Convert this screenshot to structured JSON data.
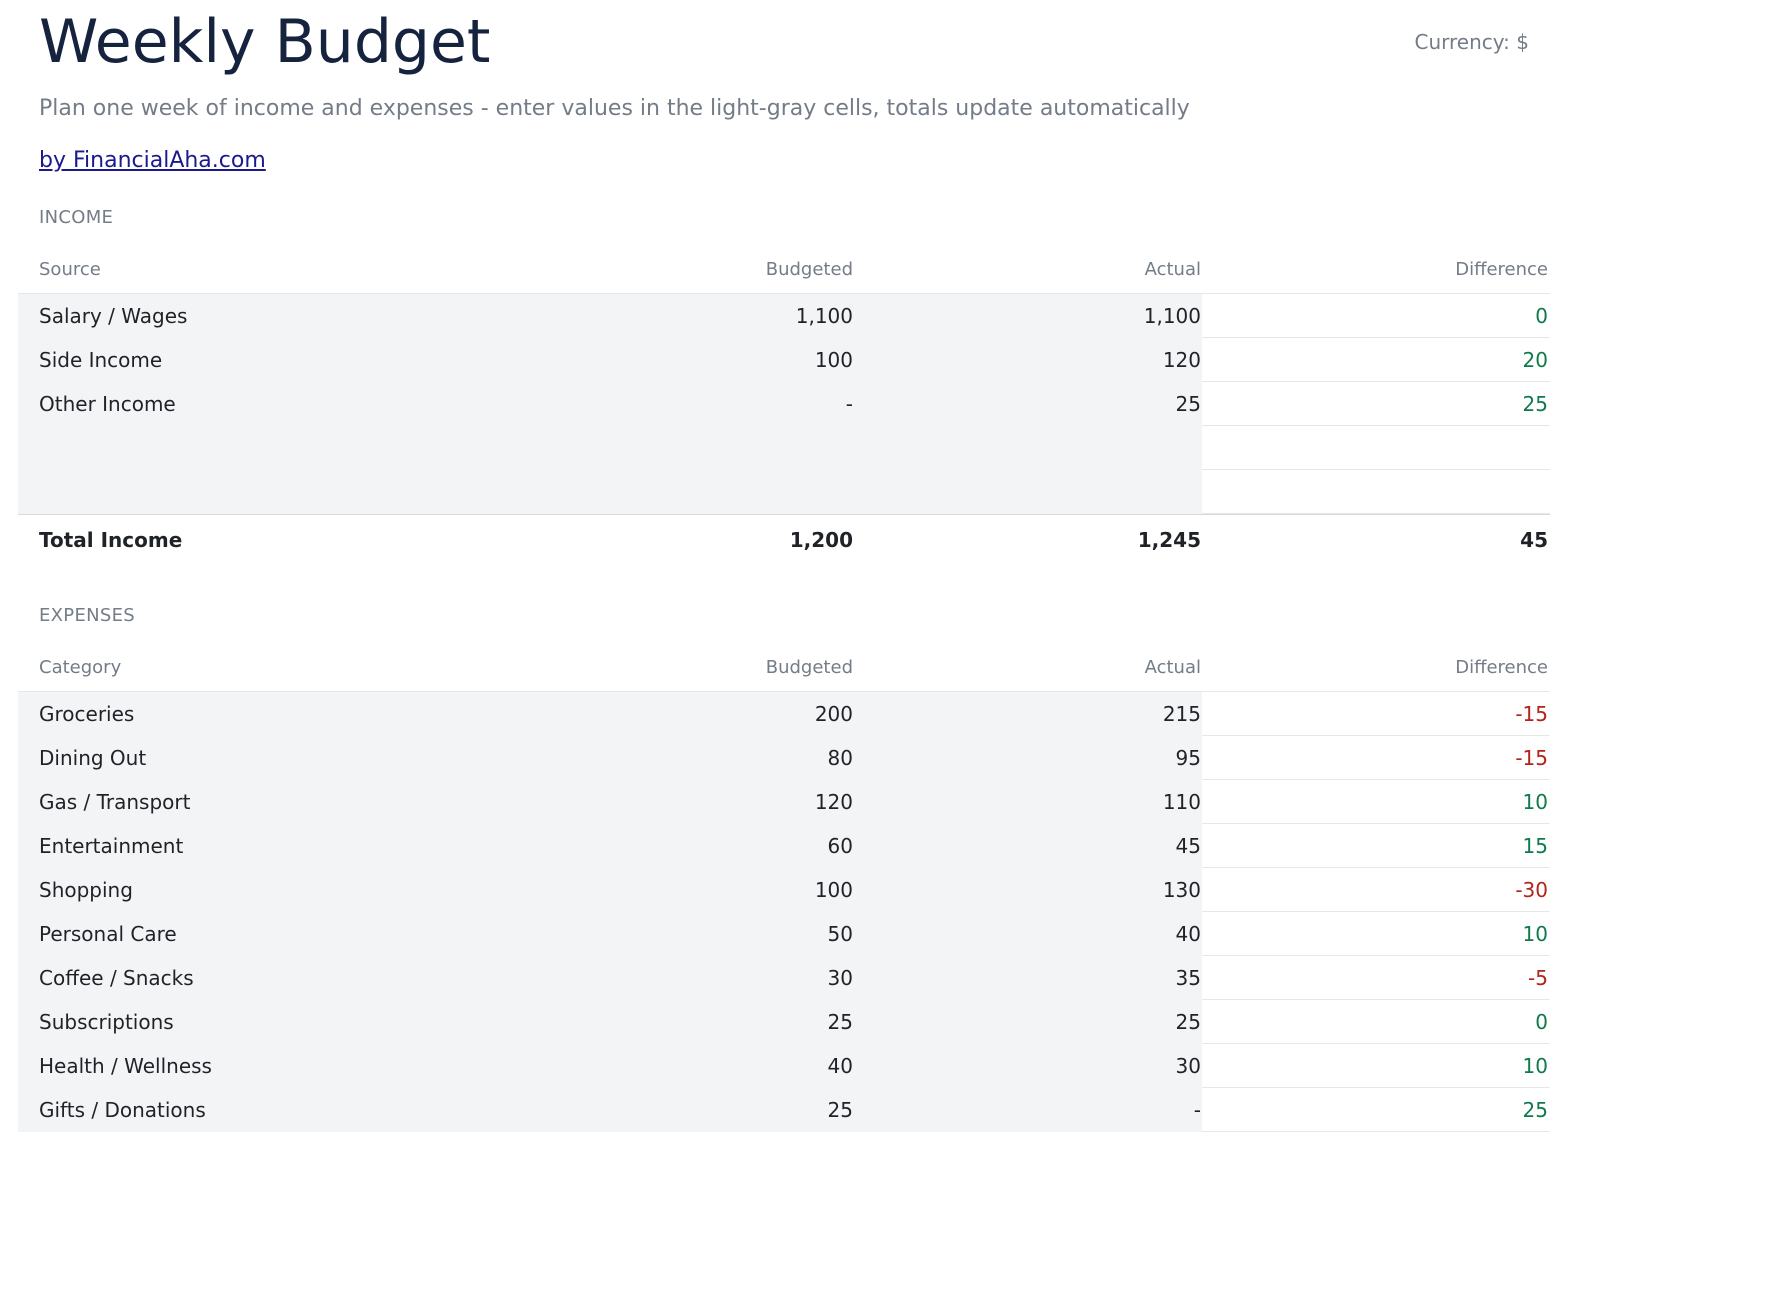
{
  "header": {
    "title": "Weekly Budget",
    "currency": "Currency: $",
    "subtitle": "Plan one week of income and expenses - enter values in the light-gray cells, totals update automatically",
    "byline": "by FinancialAha.com"
  },
  "colors": {
    "title": "#16233f",
    "muted": "#747c87",
    "input_cell": "#f3f4f6",
    "positive": "#0f7a4a",
    "negative": "#b42318",
    "link": "#1a1a8c"
  },
  "income": {
    "section_label": "INCOME",
    "columns": [
      "Source",
      "Budgeted",
      "Actual",
      "Difference"
    ],
    "rows": [
      {
        "name": "Salary / Wages",
        "budgeted": "1,100",
        "actual": "1,100",
        "difference": "0"
      },
      {
        "name": "Side Income",
        "budgeted": "100",
        "actual": "120",
        "difference": "20"
      },
      {
        "name": "Other Income",
        "budgeted": "-",
        "actual": "25",
        "difference": "25"
      },
      {
        "name": "",
        "budgeted": "",
        "actual": "",
        "difference": ""
      },
      {
        "name": "",
        "budgeted": "",
        "actual": "",
        "difference": ""
      }
    ],
    "total": {
      "name": "Total Income",
      "budgeted": "1,200",
      "actual": "1,245",
      "difference": "45"
    }
  },
  "expenses": {
    "section_label": "EXPENSES",
    "columns": [
      "Category",
      "Budgeted",
      "Actual",
      "Difference"
    ],
    "rows": [
      {
        "name": "Groceries",
        "budgeted": "200",
        "actual": "215",
        "difference": "-15"
      },
      {
        "name": "Dining Out",
        "budgeted": "80",
        "actual": "95",
        "difference": "-15"
      },
      {
        "name": "Gas / Transport",
        "budgeted": "120",
        "actual": "110",
        "difference": "10"
      },
      {
        "name": "Entertainment",
        "budgeted": "60",
        "actual": "45",
        "difference": "15"
      },
      {
        "name": "Shopping",
        "budgeted": "100",
        "actual": "130",
        "difference": "-30"
      },
      {
        "name": "Personal Care",
        "budgeted": "50",
        "actual": "40",
        "difference": "10"
      },
      {
        "name": "Coffee / Snacks",
        "budgeted": "30",
        "actual": "35",
        "difference": "-5"
      },
      {
        "name": "Subscriptions",
        "budgeted": "25",
        "actual": "25",
        "difference": "0"
      },
      {
        "name": "Health / Wellness",
        "budgeted": "40",
        "actual": "30",
        "difference": "10"
      },
      {
        "name": "Gifts / Donations",
        "budgeted": "25",
        "actual": "-",
        "difference": "25"
      }
    ]
  }
}
